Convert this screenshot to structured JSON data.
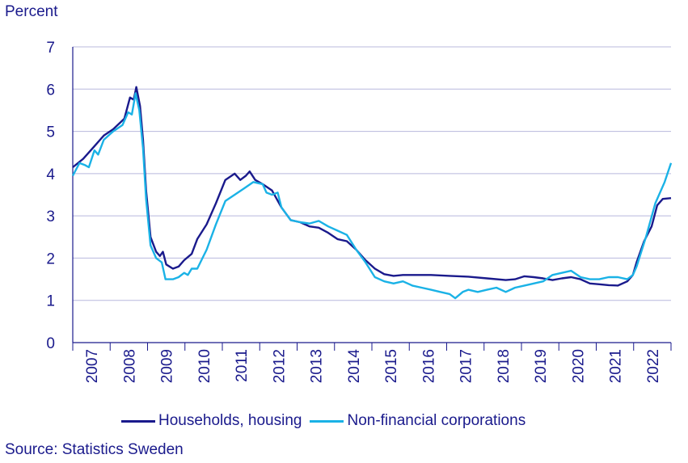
{
  "chart_data": {
    "type": "line",
    "ylabel": "Percent",
    "ylim": [
      0,
      7
    ],
    "yticks": [
      "0",
      "1",
      "2",
      "3",
      "4",
      "5",
      "6",
      "7"
    ],
    "xlim": [
      2006.92,
      2022.92
    ],
    "xticks": [
      "2007",
      "2008",
      "2009",
      "2010",
      "2011",
      "2012",
      "2013",
      "2014",
      "2015",
      "2016",
      "2017",
      "2018",
      "2019",
      "2020",
      "2021",
      "2022"
    ],
    "grid": "horizontal",
    "legend_position": "bottom",
    "source": "Source: Statistics Sweden",
    "series": [
      {
        "name": "Households, housing",
        "color": "#1a1a8c",
        "points": [
          [
            2006.92,
            4.15
          ],
          [
            2007.2,
            4.35
          ],
          [
            2007.5,
            4.65
          ],
          [
            2007.75,
            4.9
          ],
          [
            2008.0,
            5.05
          ],
          [
            2008.3,
            5.3
          ],
          [
            2008.45,
            5.8
          ],
          [
            2008.55,
            5.75
          ],
          [
            2008.62,
            6.05
          ],
          [
            2008.72,
            5.6
          ],
          [
            2008.8,
            4.8
          ],
          [
            2008.88,
            3.6
          ],
          [
            2009.0,
            2.5
          ],
          [
            2009.15,
            2.15
          ],
          [
            2009.25,
            2.05
          ],
          [
            2009.33,
            2.15
          ],
          [
            2009.42,
            1.85
          ],
          [
            2009.6,
            1.75
          ],
          [
            2009.75,
            1.8
          ],
          [
            2009.9,
            1.95
          ],
          [
            2010.1,
            2.1
          ],
          [
            2010.25,
            2.45
          ],
          [
            2010.5,
            2.8
          ],
          [
            2010.75,
            3.3
          ],
          [
            2011.0,
            3.85
          ],
          [
            2011.25,
            4.0
          ],
          [
            2011.4,
            3.85
          ],
          [
            2011.55,
            3.95
          ],
          [
            2011.65,
            4.05
          ],
          [
            2011.8,
            3.85
          ],
          [
            2012.0,
            3.75
          ],
          [
            2012.25,
            3.6
          ],
          [
            2012.5,
            3.2
          ],
          [
            2012.75,
            2.9
          ],
          [
            2013.0,
            2.85
          ],
          [
            2013.25,
            2.75
          ],
          [
            2013.5,
            2.72
          ],
          [
            2013.75,
            2.6
          ],
          [
            2014.0,
            2.45
          ],
          [
            2014.25,
            2.4
          ],
          [
            2014.5,
            2.2
          ],
          [
            2014.75,
            1.95
          ],
          [
            2015.0,
            1.75
          ],
          [
            2015.25,
            1.62
          ],
          [
            2015.5,
            1.58
          ],
          [
            2015.75,
            1.6
          ],
          [
            2016.0,
            1.6
          ],
          [
            2016.5,
            1.6
          ],
          [
            2017.0,
            1.58
          ],
          [
            2017.5,
            1.56
          ],
          [
            2018.0,
            1.52
          ],
          [
            2018.5,
            1.48
          ],
          [
            2018.75,
            1.5
          ],
          [
            2019.0,
            1.57
          ],
          [
            2019.25,
            1.55
          ],
          [
            2019.5,
            1.52
          ],
          [
            2019.75,
            1.48
          ],
          [
            2020.0,
            1.52
          ],
          [
            2020.25,
            1.55
          ],
          [
            2020.5,
            1.5
          ],
          [
            2020.75,
            1.4
          ],
          [
            2021.0,
            1.38
          ],
          [
            2021.25,
            1.36
          ],
          [
            2021.5,
            1.35
          ],
          [
            2021.75,
            1.45
          ],
          [
            2021.9,
            1.6
          ],
          [
            2022.0,
            1.9
          ],
          [
            2022.2,
            2.4
          ],
          [
            2022.4,
            2.75
          ],
          [
            2022.55,
            3.25
          ],
          [
            2022.7,
            3.4
          ],
          [
            2022.92,
            3.42
          ]
        ]
      },
      {
        "name": "Non-financial corporations",
        "color": "#1ab2e6",
        "points": [
          [
            2006.92,
            3.95
          ],
          [
            2007.1,
            4.25
          ],
          [
            2007.25,
            4.2
          ],
          [
            2007.35,
            4.15
          ],
          [
            2007.5,
            4.55
          ],
          [
            2007.6,
            4.45
          ],
          [
            2007.75,
            4.8
          ],
          [
            2008.0,
            5.0
          ],
          [
            2008.25,
            5.15
          ],
          [
            2008.4,
            5.45
          ],
          [
            2008.5,
            5.4
          ],
          [
            2008.6,
            5.9
          ],
          [
            2008.7,
            5.5
          ],
          [
            2008.8,
            4.6
          ],
          [
            2008.88,
            3.4
          ],
          [
            2009.0,
            2.3
          ],
          [
            2009.15,
            2.0
          ],
          [
            2009.3,
            1.9
          ],
          [
            2009.4,
            1.5
          ],
          [
            2009.6,
            1.5
          ],
          [
            2009.75,
            1.55
          ],
          [
            2009.9,
            1.65
          ],
          [
            2010.0,
            1.6
          ],
          [
            2010.1,
            1.75
          ],
          [
            2010.25,
            1.75
          ],
          [
            2010.5,
            2.2
          ],
          [
            2010.75,
            2.8
          ],
          [
            2011.0,
            3.35
          ],
          [
            2011.25,
            3.5
          ],
          [
            2011.5,
            3.65
          ],
          [
            2011.75,
            3.8
          ],
          [
            2012.0,
            3.75
          ],
          [
            2012.1,
            3.55
          ],
          [
            2012.25,
            3.5
          ],
          [
            2012.4,
            3.55
          ],
          [
            2012.5,
            3.2
          ],
          [
            2012.75,
            2.9
          ],
          [
            2013.0,
            2.85
          ],
          [
            2013.25,
            2.82
          ],
          [
            2013.5,
            2.88
          ],
          [
            2013.75,
            2.75
          ],
          [
            2014.0,
            2.65
          ],
          [
            2014.25,
            2.55
          ],
          [
            2014.5,
            2.2
          ],
          [
            2014.75,
            1.9
          ],
          [
            2015.0,
            1.55
          ],
          [
            2015.25,
            1.45
          ],
          [
            2015.5,
            1.4
          ],
          [
            2015.75,
            1.45
          ],
          [
            2016.0,
            1.35
          ],
          [
            2016.25,
            1.3
          ],
          [
            2016.5,
            1.25
          ],
          [
            2016.75,
            1.2
          ],
          [
            2017.0,
            1.15
          ],
          [
            2017.15,
            1.05
          ],
          [
            2017.35,
            1.2
          ],
          [
            2017.5,
            1.25
          ],
          [
            2017.75,
            1.2
          ],
          [
            2018.0,
            1.25
          ],
          [
            2018.25,
            1.3
          ],
          [
            2018.5,
            1.2
          ],
          [
            2018.75,
            1.3
          ],
          [
            2019.0,
            1.35
          ],
          [
            2019.25,
            1.4
          ],
          [
            2019.5,
            1.45
          ],
          [
            2019.75,
            1.6
          ],
          [
            2020.0,
            1.65
          ],
          [
            2020.25,
            1.7
          ],
          [
            2020.5,
            1.55
          ],
          [
            2020.75,
            1.5
          ],
          [
            2021.0,
            1.5
          ],
          [
            2021.25,
            1.55
          ],
          [
            2021.5,
            1.55
          ],
          [
            2021.75,
            1.5
          ],
          [
            2021.9,
            1.6
          ],
          [
            2022.0,
            1.8
          ],
          [
            2022.25,
            2.5
          ],
          [
            2022.5,
            3.3
          ],
          [
            2022.75,
            3.8
          ],
          [
            2022.92,
            4.25
          ]
        ]
      }
    ]
  }
}
